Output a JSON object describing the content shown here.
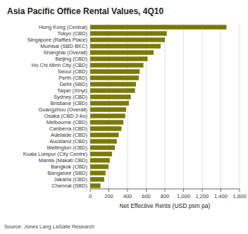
{
  "chart_data": {
    "type": "bar",
    "orientation": "horizontal",
    "title": "Asia Pacific Office Rental Values, 4Q10",
    "xlabel": "Net Effective Rents (USD psm pa)",
    "source": "Source: Jones Lang LaSalle Research",
    "categories": [
      "Hong Kong (Central)",
      "Tokyo (CBD)",
      "Singapore (Raffles Place)",
      "Mumbai (SBD BKC)",
      "Shanghai (Overall)",
      "Beijing (CBD)",
      "Ho Chi Minh City (CBD)",
      "Seoul (CBD)",
      "Perth (CBD)",
      "Delhi (SBD)",
      "Taipei (Xinyi)",
      "Sydney (CBD)",
      "Brisbane (CBD)",
      "Guangzhou (Overall)",
      "Osaka (CBD 2-ku)",
      "Melbourne (CBD)",
      "Canberra (CBD)",
      "Adelaide (CBD)",
      "Auckland (CBD)",
      "Wellington (CBD)",
      "Kuala Lumpur (City Centre)",
      "Manila (Makati CBD)",
      "Bangkok (CBD)",
      "Bangalore (SBD)",
      "Jakarta (CBD)",
      "Chennai (SBD)"
    ],
    "values": [
      1460,
      820,
      800,
      755,
      680,
      615,
      570,
      530,
      520,
      490,
      480,
      435,
      415,
      385,
      375,
      355,
      335,
      305,
      285,
      265,
      235,
      210,
      195,
      165,
      150,
      110
    ],
    "color": "#7a7a00",
    "xlim": [
      0,
      1600
    ],
    "xticks": [
      0,
      200,
      400,
      600,
      800,
      {
        "value": 1000,
        "label": "1,000"
      },
      {
        "value": 1200,
        "label": "1,200"
      },
      {
        "value": 1400,
        "label": "1,400"
      },
      {
        "value": 1600,
        "label": "1,600"
      }
    ],
    "grid": true
  }
}
